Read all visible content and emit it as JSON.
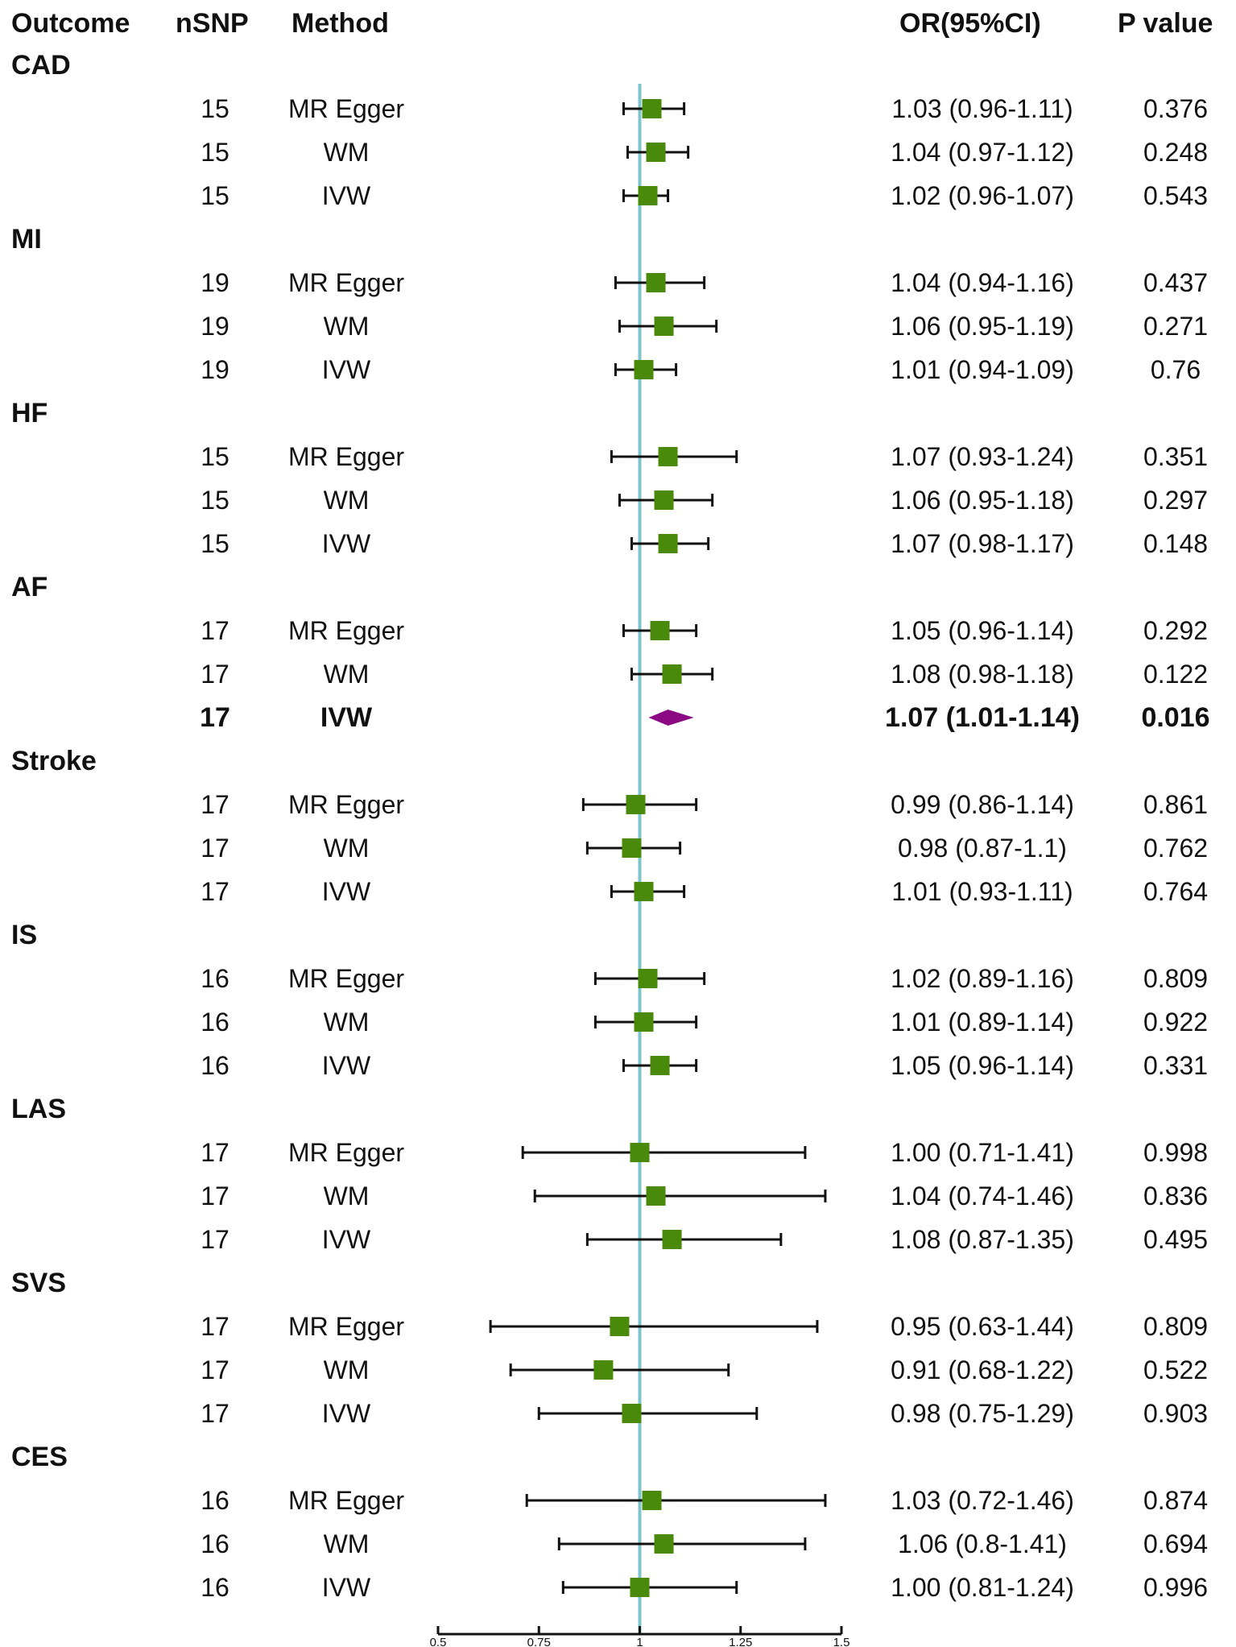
{
  "headers": {
    "outcome": "Outcome",
    "nsnp": "nSNP",
    "method": "Method",
    "or": "OR(95%CI)",
    "p": "P value"
  },
  "colors": {
    "point": "#4a8a0a",
    "point_highlight": "#8b0a84",
    "refline": "#7ec4cf",
    "line": "#111111"
  },
  "chart_data": {
    "type": "forest",
    "x_reference": 1,
    "xlim": [
      0.5,
      1.5
    ],
    "xticks": [
      0.5,
      0.75,
      1,
      1.25,
      1.5
    ],
    "xtick_labels": [
      "0.5",
      "0.75",
      "1",
      "1.25",
      "1.5"
    ],
    "groups": [
      {
        "outcome": "CAD",
        "rows": [
          {
            "nsnp": "15",
            "method": "MR Egger",
            "or": 1.03,
            "lo": 0.96,
            "hi": 1.11,
            "or_text": "1.03 (0.96-1.11)",
            "p": "0.376",
            "highlight": false
          },
          {
            "nsnp": "15",
            "method": "WM",
            "or": 1.04,
            "lo": 0.97,
            "hi": 1.12,
            "or_text": "1.04 (0.97-1.12)",
            "p": "0.248",
            "highlight": false
          },
          {
            "nsnp": "15",
            "method": "IVW",
            "or": 1.02,
            "lo": 0.96,
            "hi": 1.07,
            "or_text": "1.02 (0.96-1.07)",
            "p": "0.543",
            "highlight": false
          }
        ]
      },
      {
        "outcome": "MI",
        "rows": [
          {
            "nsnp": "19",
            "method": "MR Egger",
            "or": 1.04,
            "lo": 0.94,
            "hi": 1.16,
            "or_text": "1.04 (0.94-1.16)",
            "p": "0.437",
            "highlight": false
          },
          {
            "nsnp": "19",
            "method": "WM",
            "or": 1.06,
            "lo": 0.95,
            "hi": 1.19,
            "or_text": "1.06 (0.95-1.19)",
            "p": "0.271",
            "highlight": false
          },
          {
            "nsnp": "19",
            "method": "IVW",
            "or": 1.01,
            "lo": 0.94,
            "hi": 1.09,
            "or_text": "1.01 (0.94-1.09)",
            "p": "0.76",
            "highlight": false
          }
        ]
      },
      {
        "outcome": "HF",
        "rows": [
          {
            "nsnp": "15",
            "method": "MR Egger",
            "or": 1.07,
            "lo": 0.93,
            "hi": 1.24,
            "or_text": "1.07 (0.93-1.24)",
            "p": "0.351",
            "highlight": false
          },
          {
            "nsnp": "15",
            "method": "WM",
            "or": 1.06,
            "lo": 0.95,
            "hi": 1.18,
            "or_text": "1.06 (0.95-1.18)",
            "p": "0.297",
            "highlight": false
          },
          {
            "nsnp": "15",
            "method": "IVW",
            "or": 1.07,
            "lo": 0.98,
            "hi": 1.17,
            "or_text": "1.07 (0.98-1.17)",
            "p": "0.148",
            "highlight": false
          }
        ]
      },
      {
        "outcome": "AF",
        "rows": [
          {
            "nsnp": "17",
            "method": "MR Egger",
            "or": 1.05,
            "lo": 0.96,
            "hi": 1.14,
            "or_text": "1.05 (0.96-1.14)",
            "p": "0.292",
            "highlight": false
          },
          {
            "nsnp": "17",
            "method": "WM",
            "or": 1.08,
            "lo": 0.98,
            "hi": 1.18,
            "or_text": "1.08 (0.98-1.18)",
            "p": "0.122",
            "highlight": false
          },
          {
            "nsnp": "17",
            "method": "IVW",
            "or": 1.07,
            "lo": 1.01,
            "hi": 1.14,
            "or_text": "1.07 (1.01-1.14)",
            "p": "0.016",
            "highlight": true
          }
        ]
      },
      {
        "outcome": "Stroke",
        "rows": [
          {
            "nsnp": "17",
            "method": "MR Egger",
            "or": 0.99,
            "lo": 0.86,
            "hi": 1.14,
            "or_text": "0.99 (0.86-1.14)",
            "p": "0.861",
            "highlight": false
          },
          {
            "nsnp": "17",
            "method": "WM",
            "or": 0.98,
            "lo": 0.87,
            "hi": 1.1,
            "or_text": "0.98 (0.87-1.1)",
            "p": "0.762",
            "highlight": false
          },
          {
            "nsnp": "17",
            "method": "IVW",
            "or": 1.01,
            "lo": 0.93,
            "hi": 1.11,
            "or_text": "1.01 (0.93-1.11)",
            "p": "0.764",
            "highlight": false
          }
        ]
      },
      {
        "outcome": "IS",
        "rows": [
          {
            "nsnp": "16",
            "method": "MR Egger",
            "or": 1.02,
            "lo": 0.89,
            "hi": 1.16,
            "or_text": "1.02 (0.89-1.16)",
            "p": "0.809",
            "highlight": false
          },
          {
            "nsnp": "16",
            "method": "WM",
            "or": 1.01,
            "lo": 0.89,
            "hi": 1.14,
            "or_text": "1.01 (0.89-1.14)",
            "p": "0.922",
            "highlight": false
          },
          {
            "nsnp": "16",
            "method": "IVW",
            "or": 1.05,
            "lo": 0.96,
            "hi": 1.14,
            "or_text": "1.05 (0.96-1.14)",
            "p": "0.331",
            "highlight": false
          }
        ]
      },
      {
        "outcome": "LAS",
        "rows": [
          {
            "nsnp": "17",
            "method": "MR Egger",
            "or": 1.0,
            "lo": 0.71,
            "hi": 1.41,
            "or_text": "1.00 (0.71-1.41)",
            "p": "0.998",
            "highlight": false
          },
          {
            "nsnp": "17",
            "method": "WM",
            "or": 1.04,
            "lo": 0.74,
            "hi": 1.46,
            "or_text": "1.04 (0.74-1.46)",
            "p": "0.836",
            "highlight": false
          },
          {
            "nsnp": "17",
            "method": "IVW",
            "or": 1.08,
            "lo": 0.87,
            "hi": 1.35,
            "or_text": "1.08 (0.87-1.35)",
            "p": "0.495",
            "highlight": false
          }
        ]
      },
      {
        "outcome": "SVS",
        "rows": [
          {
            "nsnp": "17",
            "method": "MR Egger",
            "or": 0.95,
            "lo": 0.63,
            "hi": 1.44,
            "or_text": "0.95 (0.63-1.44)",
            "p": "0.809",
            "highlight": false
          },
          {
            "nsnp": "17",
            "method": "WM",
            "or": 0.91,
            "lo": 0.68,
            "hi": 1.22,
            "or_text": "0.91 (0.68-1.22)",
            "p": "0.522",
            "highlight": false
          },
          {
            "nsnp": "17",
            "method": "IVW",
            "or": 0.98,
            "lo": 0.75,
            "hi": 1.29,
            "or_text": "0.98 (0.75-1.29)",
            "p": "0.903",
            "highlight": false
          }
        ]
      },
      {
        "outcome": "CES",
        "rows": [
          {
            "nsnp": "16",
            "method": "MR Egger",
            "or": 1.03,
            "lo": 0.72,
            "hi": 1.46,
            "or_text": "1.03 (0.72-1.46)",
            "p": "0.874",
            "highlight": false
          },
          {
            "nsnp": "16",
            "method": "WM",
            "or": 1.06,
            "lo": 0.8,
            "hi": 1.41,
            "or_text": "1.06 (0.8-1.41)",
            "p": "0.694",
            "highlight": false
          },
          {
            "nsnp": "16",
            "method": "IVW",
            "or": 1.0,
            "lo": 0.81,
            "hi": 1.24,
            "or_text": "1.00 (0.81-1.24)",
            "p": "0.996",
            "highlight": false
          }
        ]
      }
    ]
  }
}
